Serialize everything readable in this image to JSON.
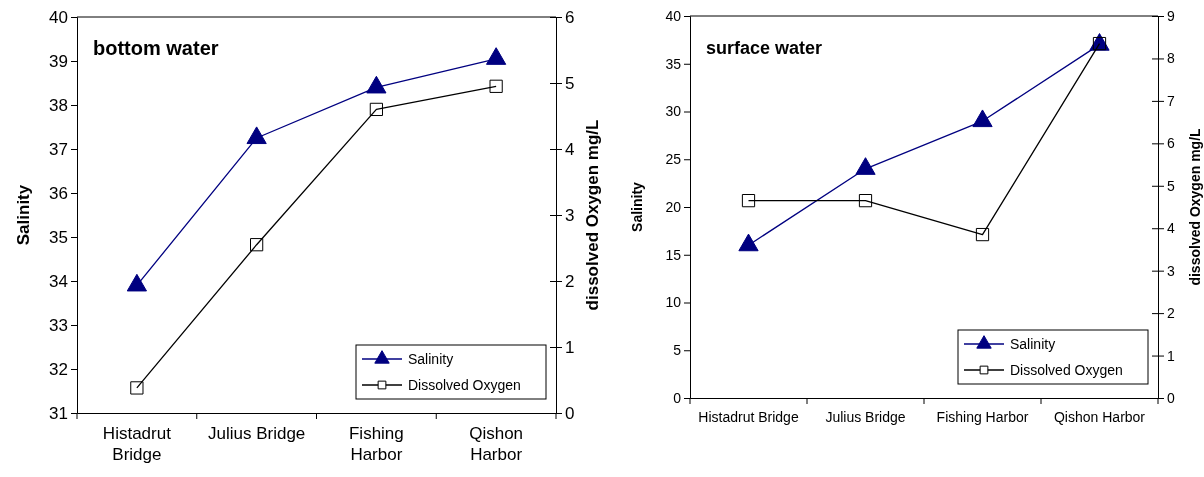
{
  "chart_data": [
    {
      "type": "line",
      "title": "bottom water",
      "ylabel": "Salinity",
      "y2label": "dissolved Oxygen mg/L",
      "categories": [
        "Histadrut Bridge",
        "Julius Bridge",
        "Fishing Harbor",
        "Qishon Harbor"
      ],
      "ylim": [
        31,
        40
      ],
      "yticks": [
        31,
        32,
        33,
        34,
        35,
        36,
        37,
        38,
        39,
        40
      ],
      "y2lim": [
        0,
        6
      ],
      "y2ticks": [
        0,
        1,
        2,
        3,
        4,
        5,
        6
      ],
      "grid": false,
      "legend": "bottom right",
      "series": [
        {
          "name": "Salinity",
          "color": "#000080",
          "marker": "triangle",
          "values": [
            33.9,
            37.25,
            38.4,
            39.05
          ]
        },
        {
          "name": "Dissolved Oxygen",
          "color": "#000000",
          "marker": "square",
          "axis": "y2",
          "values": [
            0.38,
            2.55,
            4.6,
            4.95
          ]
        }
      ]
    },
    {
      "type": "line",
      "title": "surface water",
      "ylabel": "Salinity",
      "y2label": "dissolved Oxygen mg/L",
      "categories": [
        "Histadrut Bridge",
        "Julius Bridge",
        "Fishing Harbor",
        "Qishon Harbor"
      ],
      "ylim": [
        0,
        40
      ],
      "yticks": [
        0,
        5,
        10,
        15,
        20,
        25,
        30,
        35,
        40
      ],
      "y2lim": [
        0,
        9
      ],
      "y2ticks": [
        0,
        1,
        2,
        3,
        4,
        5,
        6,
        7,
        8,
        9
      ],
      "grid": false,
      "legend": "bottom right",
      "series": [
        {
          "name": "Salinity",
          "color": "#000080",
          "marker": "triangle",
          "values": [
            16,
            24,
            29,
            37
          ]
        },
        {
          "name": "Dissolved Oxygen",
          "color": "#000000",
          "marker": "square",
          "axis": "y2",
          "values": [
            4.65,
            4.65,
            3.85,
            8.35
          ]
        }
      ]
    }
  ]
}
